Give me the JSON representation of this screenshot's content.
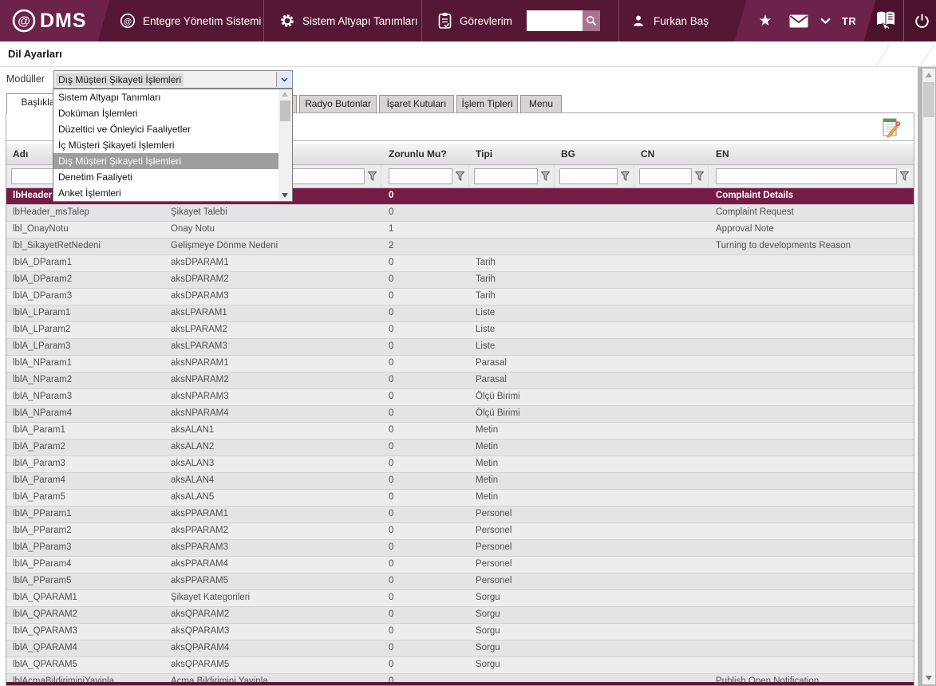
{
  "topbar": {
    "logo_text": "DMS",
    "menu": [
      {
        "label": "Entegre Yönetim Sistemi"
      },
      {
        "label": "Sistem Altyapı Tanımları"
      },
      {
        "label": "Görevlerim"
      }
    ],
    "search": {
      "value": ""
    },
    "user_name": "Furkan Baş",
    "language": "TR"
  },
  "page": {
    "title": "Dil Ayarları",
    "module_label": "Modüller",
    "module_selected": "Dış Müşteri Şikayeti İşlemleri"
  },
  "module_dropdown": {
    "items": [
      "Sistem Altyapı Tanımları",
      "Doküman İşlemleri",
      "Düzeltici ve Önleyici Faaliyetler",
      "İç Müşteri Şikayeti İşlemleri",
      "Dış Müşteri Şikayeti İşlemleri",
      "Denetim Faaliyeti",
      "Anket İşlemleri"
    ],
    "selected_index": 4
  },
  "tabs": {
    "active": "Başlıklar",
    "items": [
      "Başlıklar",
      "Radyo Butonlar",
      "İşaret Kutuları",
      "İşlem Tipleri",
      "Menu"
    ]
  },
  "grid": {
    "columns": [
      "Adı",
      "",
      "Zorunlu Mu?",
      "Tipi",
      "BG",
      "CN",
      "EN"
    ],
    "selected_row": 0,
    "rows": [
      {
        "adi": "lbHeader_r",
        "tr": "",
        "zorunlu": "0",
        "tipi": "",
        "bg": "",
        "cn": "",
        "en": "Complaint Details"
      },
      {
        "adi": "lbHeader_msTalep",
        "tr": "Şikayet Talebi",
        "zorunlu": "0",
        "tipi": "",
        "bg": "",
        "cn": "",
        "en": "Complaint Request"
      },
      {
        "adi": "lbl_OnayNotu",
        "tr": "Onay Notu",
        "zorunlu": "1",
        "tipi": "",
        "bg": "",
        "cn": "",
        "en": "Approval Note"
      },
      {
        "adi": "lbl_SikayetRetNedeni",
        "tr": "Gelişmeye Dönme Nedeni",
        "zorunlu": "2",
        "tipi": "",
        "bg": "",
        "cn": "",
        "en": "Turning to developments Reason"
      },
      {
        "adi": "lblA_DParam1",
        "tr": "aksDPARAM1",
        "zorunlu": "0",
        "tipi": "Tarih",
        "bg": "",
        "cn": "",
        "en": ""
      },
      {
        "adi": "lblA_DParam2",
        "tr": "aksDPARAM2",
        "zorunlu": "0",
        "tipi": "Tarih",
        "bg": "",
        "cn": "",
        "en": ""
      },
      {
        "adi": "lblA_DParam3",
        "tr": "aksDPARAM3",
        "zorunlu": "0",
        "tipi": "Tarih",
        "bg": "",
        "cn": "",
        "en": ""
      },
      {
        "adi": "lblA_LParam1",
        "tr": "aksLPARAM1",
        "zorunlu": "0",
        "tipi": "Liste",
        "bg": "",
        "cn": "",
        "en": ""
      },
      {
        "adi": "lblA_LParam2",
        "tr": "aksLPARAM2",
        "zorunlu": "0",
        "tipi": "Liste",
        "bg": "",
        "cn": "",
        "en": ""
      },
      {
        "adi": "lblA_LParam3",
        "tr": "aksLPARAM3",
        "zorunlu": "0",
        "tipi": "Liste",
        "bg": "",
        "cn": "",
        "en": ""
      },
      {
        "adi": "lblA_NParam1",
        "tr": "aksNPARAM1",
        "zorunlu": "0",
        "tipi": "Parasal",
        "bg": "",
        "cn": "",
        "en": ""
      },
      {
        "adi": "lblA_NParam2",
        "tr": "aksNPARAM2",
        "zorunlu": "0",
        "tipi": "Parasal",
        "bg": "",
        "cn": "",
        "en": ""
      },
      {
        "adi": "lblA_NParam3",
        "tr": "aksNPARAM3",
        "zorunlu": "0",
        "tipi": "Ölçü Birimi",
        "bg": "",
        "cn": "",
        "en": ""
      },
      {
        "adi": "lblA_NParam4",
        "tr": "aksNPARAM4",
        "zorunlu": "0",
        "tipi": "Ölçü Birimi",
        "bg": "",
        "cn": "",
        "en": ""
      },
      {
        "adi": "lblA_Param1",
        "tr": "aksALAN1",
        "zorunlu": "0",
        "tipi": "Metin",
        "bg": "",
        "cn": "",
        "en": ""
      },
      {
        "adi": "lblA_Param2",
        "tr": "aksALAN2",
        "zorunlu": "0",
        "tipi": "Metin",
        "bg": "",
        "cn": "",
        "en": ""
      },
      {
        "adi": "lblA_Param3",
        "tr": "aksALAN3",
        "zorunlu": "0",
        "tipi": "Metin",
        "bg": "",
        "cn": "",
        "en": ""
      },
      {
        "adi": "lblA_Param4",
        "tr": "aksALAN4",
        "zorunlu": "0",
        "tipi": "Metin",
        "bg": "",
        "cn": "",
        "en": ""
      },
      {
        "adi": "lblA_Param5",
        "tr": "aksALAN5",
        "zorunlu": "0",
        "tipi": "Metin",
        "bg": "",
        "cn": "",
        "en": ""
      },
      {
        "adi": "lblA_PParam1",
        "tr": "aksPPARAM1",
        "zorunlu": "0",
        "tipi": "Personel",
        "bg": "",
        "cn": "",
        "en": ""
      },
      {
        "adi": "lblA_PParam2",
        "tr": "aksPPARAM2",
        "zorunlu": "0",
        "tipi": "Personel",
        "bg": "",
        "cn": "",
        "en": ""
      },
      {
        "adi": "lblA_PParam3",
        "tr": "aksPPARAM3",
        "zorunlu": "0",
        "tipi": "Personel",
        "bg": "",
        "cn": "",
        "en": ""
      },
      {
        "adi": "lblA_PParam4",
        "tr": "aksPPARAM4",
        "zorunlu": "0",
        "tipi": "Personel",
        "bg": "",
        "cn": "",
        "en": ""
      },
      {
        "adi": "lblA_PParam5",
        "tr": "aksPPARAM5",
        "zorunlu": "0",
        "tipi": "Personel",
        "bg": "",
        "cn": "",
        "en": ""
      },
      {
        "adi": "lblA_QPARAM1",
        "tr": "Şikayet Kategorileri",
        "zorunlu": "0",
        "tipi": "Sorgu",
        "bg": "",
        "cn": "",
        "en": ""
      },
      {
        "adi": "lblA_QPARAM2",
        "tr": "aksQPARAM2",
        "zorunlu": "0",
        "tipi": "Sorgu",
        "bg": "",
        "cn": "",
        "en": ""
      },
      {
        "adi": "lblA_QPARAM3",
        "tr": "aksQPARAM3",
        "zorunlu": "0",
        "tipi": "Sorgu",
        "bg": "",
        "cn": "",
        "en": ""
      },
      {
        "adi": "lblA_QPARAM4",
        "tr": "aksQPARAM4",
        "zorunlu": "0",
        "tipi": "Sorgu",
        "bg": "",
        "cn": "",
        "en": ""
      },
      {
        "adi": "lblA_QPARAM5",
        "tr": "aksQPARAM5",
        "zorunlu": "0",
        "tipi": "Sorgu",
        "bg": "",
        "cn": "",
        "en": ""
      },
      {
        "adi": "lblAcmaBildiriminiYayinla",
        "tr": "Acma Bildirimini Yayinla",
        "zorunlu": "0",
        "tipi": "",
        "bg": "",
        "cn": "",
        "en": "Publish Open Notification"
      }
    ]
  },
  "colors": {
    "topbar": "#551735",
    "accent_light": "#6d2249",
    "accent_dark": "#4b132e",
    "selected_row": "#731d46",
    "bottom_bar": "#5c1a38"
  }
}
